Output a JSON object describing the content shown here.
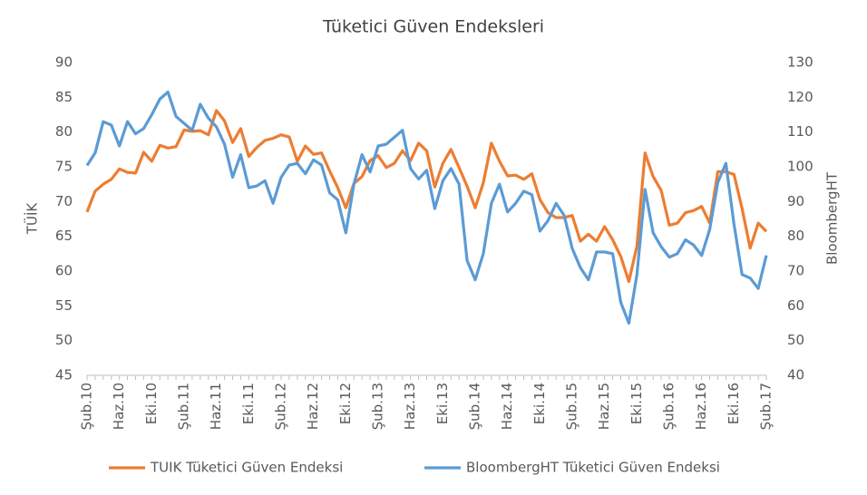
{
  "chart_data": {
    "type": "line",
    "title": "Tüketici Güven Endeksleri",
    "y_label": "TÜİK",
    "y2_label": "BloombergHT",
    "categories": [
      "Şub.10",
      null,
      null,
      null,
      "Haz.10",
      null,
      null,
      null,
      "Eki.10",
      null,
      null,
      null,
      "Şub.11",
      null,
      null,
      null,
      "Haz.11",
      null,
      null,
      null,
      "Eki.11",
      null,
      null,
      null,
      "Şub.12",
      null,
      null,
      null,
      "Haz.12",
      null,
      null,
      null,
      "Eki.12",
      null,
      null,
      null,
      "Şub.13",
      null,
      null,
      null,
      "Haz.13",
      null,
      null,
      null,
      "Eki.13",
      null,
      null,
      null,
      "Şub.14",
      null,
      null,
      null,
      "Haz.14",
      null,
      null,
      null,
      "Eki.14",
      null,
      null,
      null,
      "Şub.15",
      null,
      null,
      null,
      "Haz.15",
      null,
      null,
      null,
      "Eki.15",
      null,
      null,
      null,
      "Şub.16",
      null,
      null,
      null,
      "Haz.16",
      null,
      null,
      null,
      "Eki.16",
      null,
      null,
      null,
      "Şub.17"
    ],
    "series": [
      {
        "name": "TUIK Tüketici Güven Endeksi",
        "color": "#ed7d31",
        "values": [
          68.5,
          71.5,
          72.5,
          73.2,
          74.7,
          74.2,
          74.1,
          77.1,
          75.8,
          78.1,
          77.7,
          77.9,
          80.3,
          80.1,
          80.2,
          79.6,
          83.1,
          81.6,
          78.5,
          80.5,
          76.5,
          77.8,
          78.8,
          79.1,
          79.6,
          79.3,
          75.8,
          78.0,
          76.8,
          77.0,
          74.4,
          72.0,
          69.1,
          72.6,
          73.6,
          75.9,
          76.6,
          74.9,
          75.5,
          77.3,
          75.9,
          78.4,
          77.3,
          72.1,
          75.5,
          77.5,
          74.9,
          72.2,
          69.1,
          72.7,
          78.4,
          75.8,
          73.7,
          73.8,
          73.2,
          74.0,
          70.3,
          68.4,
          67.7,
          67.7,
          68.0,
          64.3,
          65.3,
          64.3,
          66.4,
          64.5,
          62.1,
          58.5,
          63.6,
          77.0,
          73.6,
          71.6,
          66.6,
          66.9,
          68.4,
          68.7,
          69.3,
          66.9,
          74.3,
          74.3,
          73.9,
          69.0,
          63.3,
          66.9,
          65.7
        ]
      },
      {
        "name": "BloombergHT Tüketici Güven Endeksi",
        "color": "#5b9bd5",
        "axis": "y2",
        "values": [
          100.4,
          104,
          113,
          112,
          106,
          113,
          109.5,
          111,
          115,
          119.5,
          121.5,
          114.5,
          112.5,
          110.5,
          118,
          114,
          111.5,
          106.5,
          97,
          103.5,
          94,
          94.5,
          96,
          89.5,
          97,
          100.5,
          101,
          98,
          102,
          100.5,
          92.5,
          90.5,
          81,
          95,
          103.5,
          98.5,
          106,
          106.5,
          108.5,
          110.5,
          99.5,
          96.5,
          99,
          88,
          96,
          99.5,
          95,
          73,
          67.5,
          75,
          89.5,
          95,
          87,
          89.5,
          93,
          92,
          81.5,
          84.5,
          89.5,
          86,
          76.5,
          71,
          67.5,
          75.5,
          75.5,
          75,
          61,
          55,
          69,
          93.5,
          81,
          77,
          74,
          75,
          79,
          77.5,
          74.5,
          82,
          95.5,
          101,
          83.5,
          69,
          68,
          65,
          74.5
        ]
      }
    ],
    "ylim": [
      45,
      90
    ],
    "yticks": [
      45,
      50,
      55,
      60,
      65,
      70,
      75,
      80,
      85,
      90
    ],
    "y2lim": [
      40,
      130
    ],
    "y2ticks": [
      40,
      50,
      60,
      70,
      80,
      90,
      100,
      110,
      120,
      130
    ],
    "grid": false,
    "legend": "bottom"
  }
}
